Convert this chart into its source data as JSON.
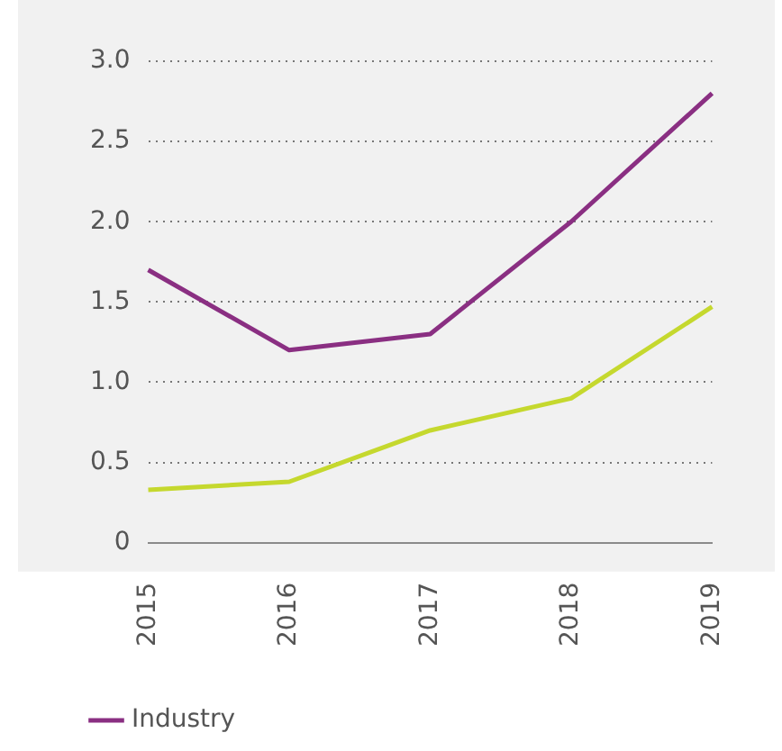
{
  "chart_data": {
    "type": "line",
    "categories": [
      "2015",
      "2016",
      "2017",
      "2018",
      "2019"
    ],
    "series": [
      {
        "color": "#c5d82e",
        "values": [
          0.33,
          0.38,
          0.7,
          0.9,
          1.47
        ]
      },
      {
        "name": "Industry",
        "color": "#8a2f82",
        "values": [
          1.7,
          1.2,
          1.3,
          2.0,
          2.8
        ]
      }
    ],
    "ylim": [
      0,
      3
    ],
    "yticks": [
      0,
      0.5,
      {
        "value": 1,
        "label": "1.0"
      },
      1.5,
      {
        "value": 2,
        "label": "2.0"
      },
      2.5,
      {
        "value": 3,
        "label": "3.0"
      }
    ],
    "grid": "y",
    "legend": "bottom",
    "marker": "none",
    "line_style": "solid"
  }
}
